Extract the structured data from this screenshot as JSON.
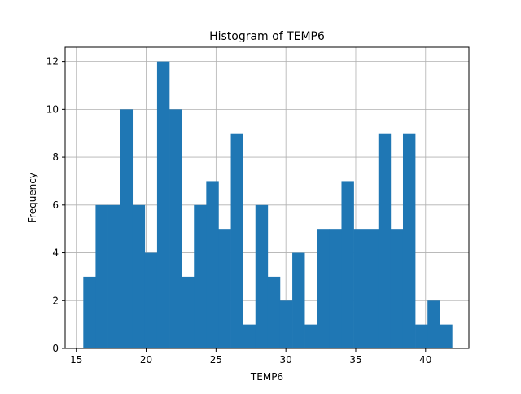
{
  "chart_data": {
    "type": "bar",
    "title": "Histogram of TEMP6",
    "xlabel": "TEMP6",
    "ylabel": "Frequency",
    "bin_start": 15.5,
    "bin_width": 0.88,
    "counts": [
      3,
      6,
      6,
      10,
      6,
      4,
      12,
      10,
      3,
      6,
      7,
      5,
      9,
      1,
      6,
      3,
      2,
      4,
      1,
      5,
      5,
      7,
      5,
      5,
      9,
      5,
      9,
      1,
      2,
      1
    ],
    "xlim": [
      14.2,
      43.1
    ],
    "ylim": [
      0,
      12.6
    ],
    "xticks": [
      15,
      20,
      25,
      30,
      35,
      40
    ],
    "yticks": [
      0,
      2,
      4,
      6,
      8,
      10,
      12
    ],
    "grid": true,
    "bar_color": "#1f77b4",
    "grid_color": "#b0b0b0"
  }
}
